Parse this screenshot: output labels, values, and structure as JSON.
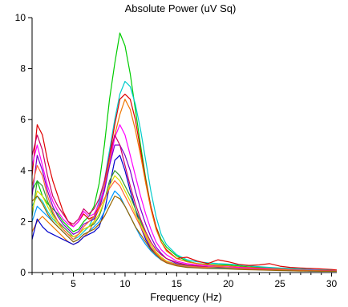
{
  "chart_data": {
    "type": "line",
    "title": "Absolute Power (uV Sq)",
    "xlabel": "Frequency (Hz)",
    "ylabel": "",
    "xlim": [
      1,
      30.5
    ],
    "ylim": [
      0,
      10
    ],
    "xticks": [
      5,
      10,
      15,
      20,
      25,
      30
    ],
    "yticks": [
      0,
      2,
      4,
      6,
      8,
      10
    ],
    "grid": false,
    "x": [
      1,
      1.5,
      2,
      2.5,
      3,
      3.5,
      4,
      4.5,
      5,
      5.5,
      6,
      6.5,
      7,
      7.5,
      8,
      8.5,
      9,
      9.5,
      10,
      10.5,
      11,
      11.5,
      12,
      12.5,
      13,
      13.5,
      14,
      15,
      16,
      17,
      18,
      19,
      20,
      21,
      22,
      23,
      24,
      25,
      26,
      27,
      28,
      29,
      30,
      30.5
    ],
    "series": [
      {
        "color": "#00cc00",
        "values": [
          3.2,
          3.6,
          3.0,
          2.7,
          2.5,
          2.3,
          2.0,
          1.8,
          1.6,
          1.7,
          2.0,
          2.2,
          2.6,
          3.5,
          5.0,
          6.8,
          8.2,
          9.4,
          8.9,
          7.8,
          6.4,
          5.0,
          3.7,
          2.6,
          1.8,
          1.3,
          1.0,
          0.65,
          0.45,
          0.35,
          0.32,
          0.3,
          0.3,
          0.26,
          0.22,
          0.2,
          0.18,
          0.16,
          0.14,
          0.12,
          0.1,
          0.1,
          0.08,
          0.08
        ]
      },
      {
        "color": "#00cccc",
        "values": [
          2.6,
          3.0,
          2.8,
          2.4,
          2.1,
          1.9,
          1.7,
          1.5,
          1.3,
          1.4,
          1.6,
          1.8,
          2.2,
          2.8,
          3.6,
          4.8,
          6.0,
          7.0,
          7.5,
          7.3,
          6.6,
          5.6,
          4.4,
          3.2,
          2.2,
          1.5,
          1.1,
          0.7,
          0.5,
          0.42,
          0.38,
          0.35,
          0.33,
          0.3,
          0.26,
          0.23,
          0.2,
          0.18,
          0.16,
          0.14,
          0.12,
          0.1,
          0.09,
          0.08
        ]
      },
      {
        "color": "#e00000",
        "values": [
          3.8,
          5.8,
          5.4,
          4.4,
          3.6,
          3.0,
          2.4,
          2.0,
          1.8,
          2.0,
          2.3,
          2.1,
          2.2,
          2.6,
          3.4,
          4.6,
          5.8,
          6.8,
          7.0,
          6.8,
          6.0,
          4.8,
          3.6,
          2.6,
          1.8,
          1.2,
          0.9,
          0.55,
          0.6,
          0.45,
          0.35,
          0.5,
          0.42,
          0.32,
          0.28,
          0.3,
          0.35,
          0.25,
          0.2,
          0.18,
          0.16,
          0.14,
          0.12,
          0.1
        ]
      },
      {
        "color": "#ee7700",
        "values": [
          1.6,
          2.0,
          2.2,
          2.0,
          1.8,
          1.6,
          1.4,
          1.2,
          1.1,
          1.2,
          1.4,
          1.6,
          2.0,
          2.6,
          3.4,
          4.4,
          5.4,
          6.2,
          6.8,
          6.4,
          5.6,
          4.6,
          3.5,
          2.5,
          1.7,
          1.2,
          0.85,
          0.55,
          0.42,
          0.35,
          0.3,
          0.28,
          0.26,
          0.22,
          0.2,
          0.18,
          0.16,
          0.14,
          0.12,
          0.1,
          0.09,
          0.08,
          0.07,
          0.07
        ]
      },
      {
        "color": "#ff00ff",
        "values": [
          4.2,
          5.0,
          4.2,
          3.4,
          2.8,
          2.4,
          2.1,
          1.9,
          1.8,
          2.0,
          2.4,
          2.2,
          2.3,
          2.7,
          3.3,
          4.2,
          5.3,
          5.8,
          5.4,
          4.6,
          3.8,
          3.0,
          2.3,
          1.7,
          1.2,
          0.9,
          0.7,
          0.45,
          0.35,
          0.3,
          0.26,
          0.24,
          0.22,
          0.2,
          0.18,
          0.16,
          0.14,
          0.12,
          0.11,
          0.1,
          0.09,
          0.08,
          0.07,
          0.07
        ]
      },
      {
        "color": "#7a00cc",
        "values": [
          3.0,
          4.6,
          4.0,
          3.2,
          2.6,
          2.2,
          1.9,
          1.7,
          1.5,
          1.6,
          1.9,
          2.0,
          2.1,
          2.5,
          3.2,
          4.2,
          5.0,
          5.0,
          4.6,
          4.0,
          3.2,
          2.5,
          1.9,
          1.4,
          1.0,
          0.75,
          0.55,
          0.35,
          0.28,
          0.24,
          0.22,
          0.2,
          0.18,
          0.16,
          0.14,
          0.13,
          0.12,
          0.11,
          0.1,
          0.09,
          0.08,
          0.07,
          0.06,
          0.06
        ]
      },
      {
        "color": "#0000cc",
        "values": [
          1.3,
          2.1,
          1.8,
          1.6,
          1.5,
          1.4,
          1.3,
          1.2,
          1.1,
          1.2,
          1.4,
          1.5,
          1.6,
          1.8,
          2.4,
          3.4,
          4.4,
          4.6,
          4.0,
          3.2,
          2.5,
          1.8,
          1.3,
          0.95,
          0.7,
          0.5,
          0.4,
          0.3,
          0.25,
          0.2,
          0.18,
          0.16,
          0.15,
          0.14,
          0.12,
          0.11,
          0.1,
          0.09,
          0.08,
          0.07,
          0.06,
          0.06,
          0.05,
          0.05
        ]
      },
      {
        "color": "#cc0066",
        "values": [
          4.6,
          5.4,
          4.8,
          3.8,
          3.0,
          2.6,
          2.3,
          2.0,
          1.9,
          2.1,
          2.5,
          2.3,
          2.5,
          2.9,
          3.6,
          4.6,
          5.4,
          5.0,
          4.2,
          3.4,
          2.7,
          2.1,
          1.6,
          1.2,
          0.9,
          0.7,
          0.55,
          0.4,
          0.3,
          0.26,
          0.22,
          0.2,
          0.19,
          0.17,
          0.15,
          0.14,
          0.12,
          0.11,
          0.1,
          0.09,
          0.08,
          0.07,
          0.07,
          0.06
        ]
      },
      {
        "color": "#339933",
        "values": [
          2.2,
          3.6,
          3.4,
          2.8,
          2.3,
          2.0,
          1.8,
          1.6,
          1.4,
          1.5,
          1.7,
          1.8,
          1.9,
          2.2,
          2.8,
          3.6,
          4.0,
          3.8,
          3.4,
          3.0,
          2.5,
          2.0,
          1.5,
          1.1,
          0.8,
          0.6,
          0.45,
          0.32,
          0.26,
          0.22,
          0.2,
          0.18,
          0.17,
          0.15,
          0.13,
          0.12,
          0.11,
          0.1,
          0.09,
          0.08,
          0.07,
          0.06,
          0.06,
          0.05
        ]
      },
      {
        "color": "#dddd00",
        "values": [
          2.4,
          3.2,
          3.0,
          2.6,
          2.2,
          1.9,
          1.7,
          1.5,
          1.4,
          1.5,
          1.7,
          1.8,
          2.0,
          2.3,
          2.8,
          3.4,
          3.8,
          3.6,
          3.2,
          2.8,
          2.3,
          1.9,
          1.5,
          1.1,
          0.8,
          0.6,
          0.45,
          0.3,
          0.24,
          0.2,
          0.18,
          0.17,
          0.16,
          0.14,
          0.13,
          0.12,
          0.11,
          0.1,
          0.09,
          0.08,
          0.07,
          0.06,
          0.06,
          0.05
        ]
      },
      {
        "color": "#0099ff",
        "values": [
          2.0,
          2.6,
          2.4,
          2.2,
          2.0,
          1.8,
          1.6,
          1.4,
          1.2,
          1.3,
          1.5,
          1.6,
          1.8,
          2.0,
          2.4,
          2.8,
          3.2,
          3.0,
          2.6,
          2.2,
          1.8,
          1.4,
          1.1,
          0.85,
          0.65,
          0.5,
          0.4,
          0.28,
          0.22,
          0.2,
          0.18,
          0.17,
          0.16,
          0.14,
          0.12,
          0.11,
          0.1,
          0.09,
          0.08,
          0.07,
          0.06,
          0.06,
          0.05,
          0.05
        ]
      },
      {
        "color": "#ff6633",
        "values": [
          3.4,
          4.2,
          3.8,
          3.0,
          2.4,
          2.0,
          1.7,
          1.5,
          1.3,
          1.5,
          1.8,
          2.0,
          2.2,
          2.5,
          2.9,
          3.3,
          3.6,
          3.4,
          3.0,
          2.6,
          2.2,
          1.8,
          1.4,
          1.0,
          0.75,
          0.55,
          0.42,
          0.3,
          0.25,
          0.22,
          0.2,
          0.24,
          0.2,
          0.16,
          0.14,
          0.13,
          0.12,
          0.11,
          0.1,
          0.09,
          0.08,
          0.07,
          0.06,
          0.06
        ]
      },
      {
        "color": "#996600",
        "values": [
          2.8,
          3.0,
          2.7,
          2.3,
          2.0,
          1.8,
          1.6,
          1.4,
          1.2,
          1.3,
          1.5,
          1.6,
          1.7,
          1.9,
          2.2,
          2.6,
          3.0,
          2.9,
          2.6,
          2.2,
          1.8,
          1.5,
          1.2,
          0.9,
          0.7,
          0.5,
          0.38,
          0.26,
          0.2,
          0.18,
          0.16,
          0.15,
          0.14,
          0.12,
          0.11,
          0.1,
          0.09,
          0.08,
          0.07,
          0.06,
          0.06,
          0.05,
          0.05,
          0.05
        ]
      }
    ]
  }
}
